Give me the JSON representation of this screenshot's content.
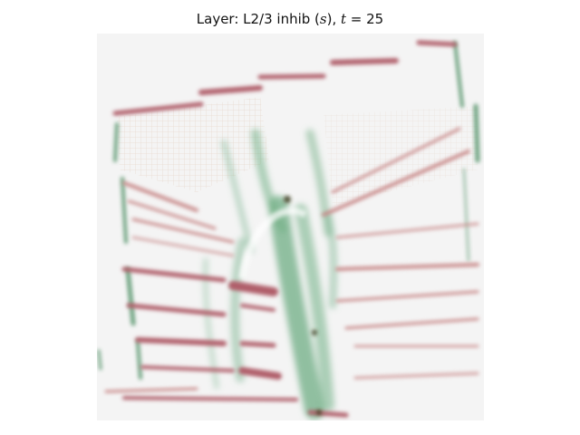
{
  "figure": {
    "title": {
      "prefix": "Layer: L2/3 inhib (",
      "var_s": "s",
      "mid": "), ",
      "var_t": "t",
      "eq": " = ",
      "value": "25"
    },
    "colors": {
      "background": "#f4f4f4",
      "excitation": "#c98a8a",
      "excitation_strong": "#b05f6a",
      "inhibition": "#6fae84",
      "inhibition_strong": "#4d8f64",
      "dark_node": "#3b3a1f"
    }
  }
}
